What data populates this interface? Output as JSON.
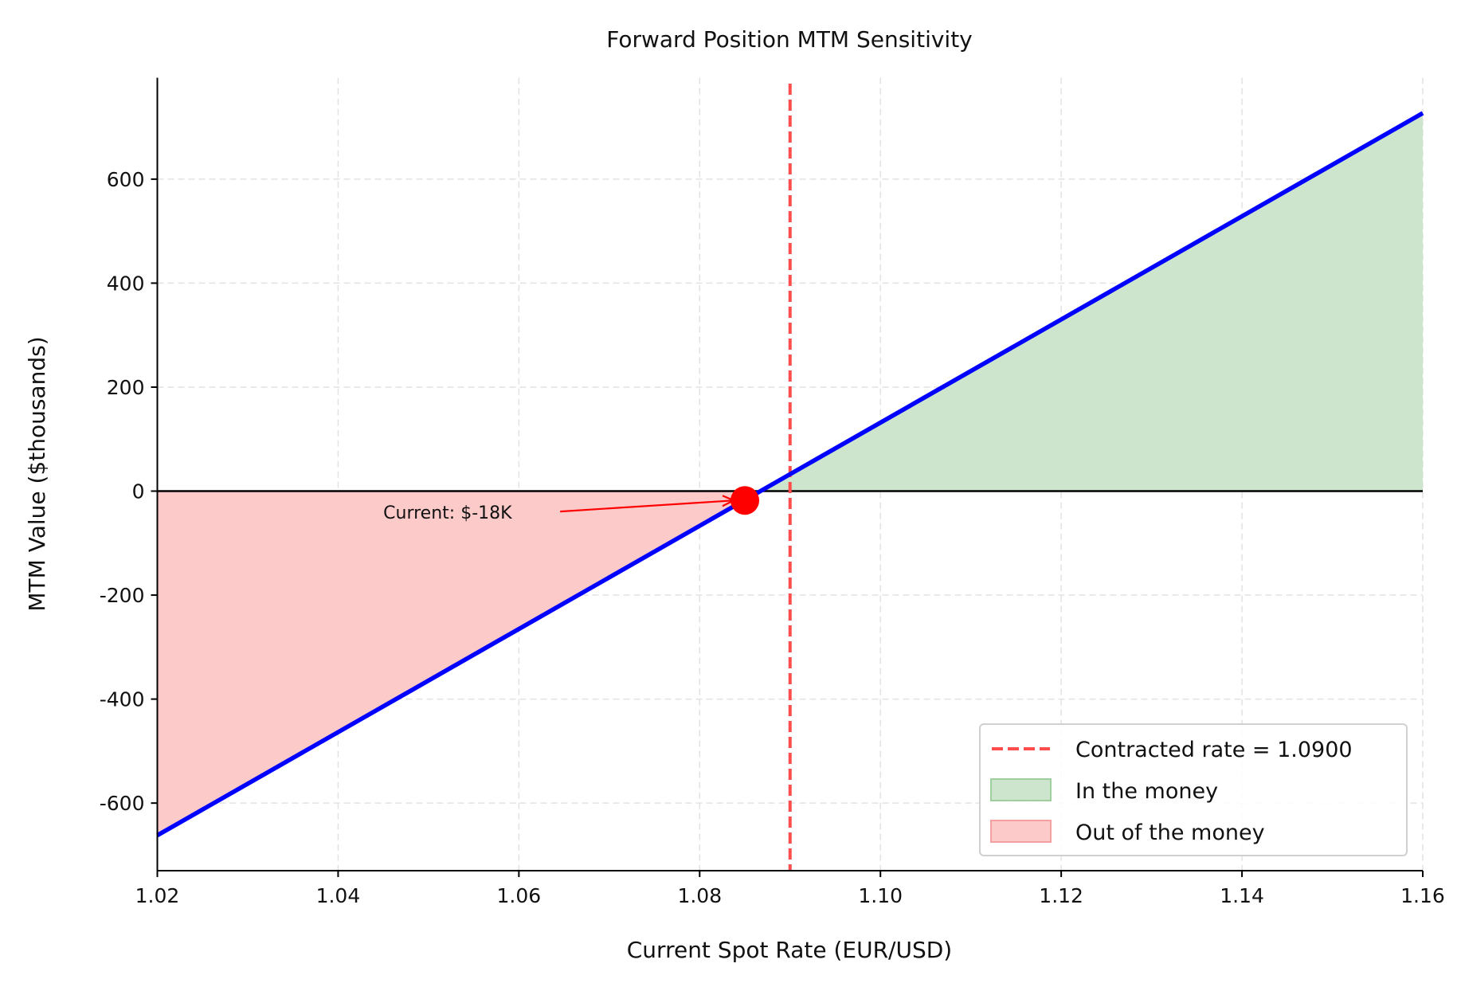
{
  "chart_data": {
    "type": "line",
    "title": "Forward Position MTM Sensitivity",
    "xlabel": "Current Spot Rate (EUR/USD)",
    "ylabel": "MTM Value ($thousands)",
    "xlim": [
      1.02,
      1.16
    ],
    "ylim": [
      -730,
      795
    ],
    "xticks": [
      1.02,
      1.04,
      1.06,
      1.08,
      1.1,
      1.12,
      1.14,
      1.16
    ],
    "xtick_labels": [
      "1.02",
      "1.04",
      "1.06",
      "1.08",
      "1.10",
      "1.12",
      "1.14",
      "1.16"
    ],
    "yticks": [
      -600,
      -400,
      -200,
      0,
      200,
      400,
      600
    ],
    "ytick_labels": [
      "-600",
      "-400",
      "-200",
      "0",
      "200",
      "400",
      "600"
    ],
    "grid": true,
    "series": [
      {
        "x": [
          1.02,
          1.16
        ],
        "y": [
          -662,
          727
        ],
        "color": "#0000ff"
      }
    ],
    "zero_line": 0,
    "contracted_rate": 1.09,
    "current_point": {
      "x": 1.085,
      "y": -18,
      "color": "#ff0000"
    },
    "annotation": {
      "text": "Current: $-18K",
      "xytext": [
        1.045,
        -30
      ]
    },
    "fill_positive_color": "#cde5cd",
    "fill_negative_color": "#fdcaca",
    "legend": {
      "placement": "lower-right",
      "entries": [
        "Contracted rate = 1.0900",
        "In the money",
        "Out of the money"
      ]
    }
  }
}
